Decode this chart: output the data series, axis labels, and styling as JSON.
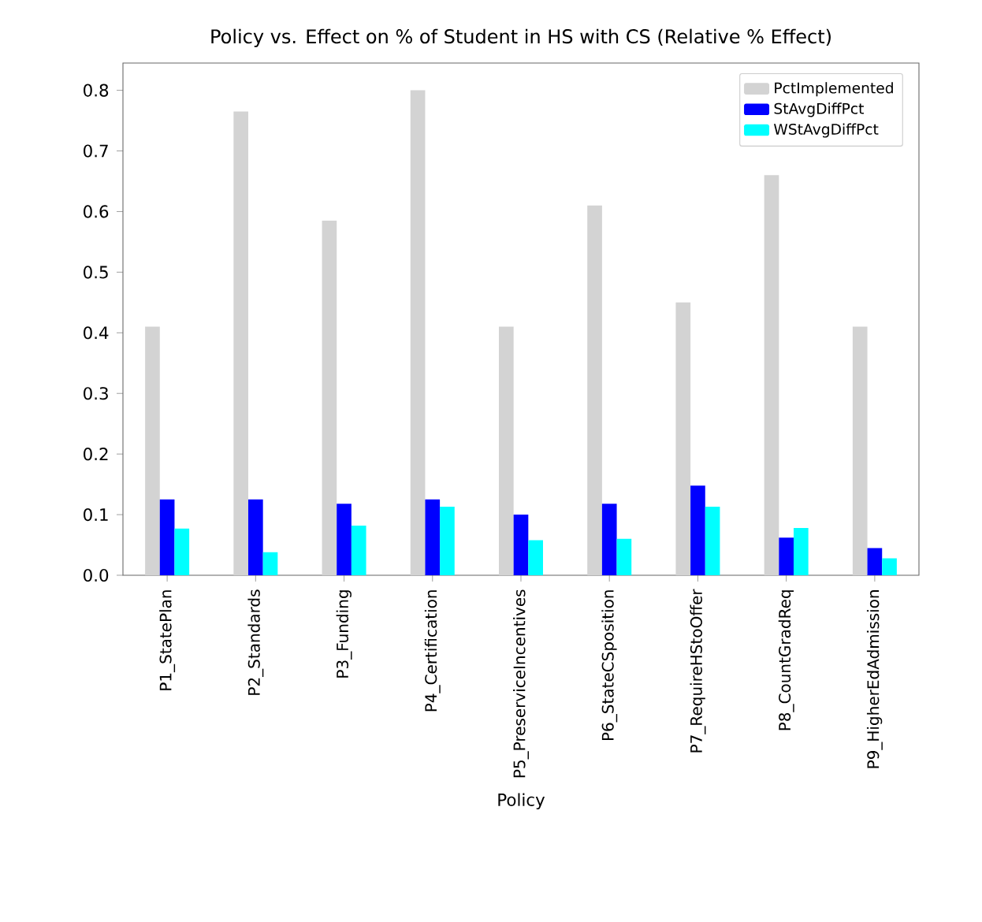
{
  "chart_data": {
    "type": "bar",
    "title": "Policy vs. Effect on % of Student in HS with CS (Relative % Effect)",
    "xlabel": "Policy",
    "categories": [
      "P1_StatePlan",
      "P2_Standards",
      "P3_Funding",
      "P4_Certification",
      "P5_PreserviceIncentives",
      "P6_StateCSposition",
      "P7_RequireHStoOffer",
      "P8_CountGradReq",
      "P9_HigherEdAdmission"
    ],
    "series": [
      {
        "name": "PctImplemented",
        "color": "#d3d3d3",
        "values": [
          0.41,
          0.765,
          0.585,
          0.8,
          0.41,
          0.61,
          0.45,
          0.66,
          0.41
        ]
      },
      {
        "name": "StAvgDiffPct",
        "color": "#0000ff",
        "values": [
          0.125,
          0.125,
          0.118,
          0.125,
          0.1,
          0.118,
          0.148,
          0.062,
          0.045
        ]
      },
      {
        "name": "WStAvgDiffPct",
        "color": "#00ffff",
        "values": [
          0.077,
          0.038,
          0.082,
          0.113,
          0.058,
          0.06,
          0.113,
          0.078,
          0.028
        ]
      }
    ],
    "ylim": [
      0,
      0.845
    ],
    "yticks": [
      {
        "value": 0,
        "label": "0.0"
      },
      0.1,
      0.2,
      0.3,
      0.4,
      0.5,
      0.6,
      0.7,
      0.8
    ],
    "legend": "top right",
    "grid": false
  }
}
